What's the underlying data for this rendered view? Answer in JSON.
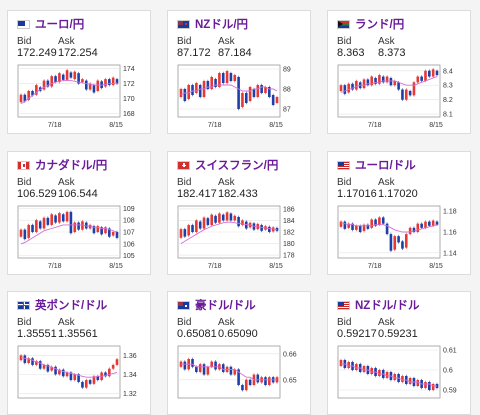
{
  "cards": [
    {
      "pair": "ユーロ/円",
      "flag": "eu",
      "bid": "172.249",
      "ask": "172.254",
      "yticks": [
        "174",
        "172",
        "170",
        "168"
      ],
      "yvals": [
        174,
        172,
        170,
        168
      ],
      "ymin": 167.5,
      "ymax": 174.5,
      "xticks": [
        "7/18",
        "8/15"
      ],
      "candles": [
        [
          169.5,
          170.5
        ],
        [
          170.5,
          169.6
        ],
        [
          169.8,
          171
        ],
        [
          171,
          170.4
        ],
        [
          170.5,
          171.8
        ],
        [
          171.5,
          171
        ],
        [
          171.2,
          172.4
        ],
        [
          172.4,
          171.6
        ],
        [
          171.6,
          173
        ],
        [
          173,
          172.2
        ],
        [
          172.2,
          173.4
        ],
        [
          173.2,
          172.5
        ],
        [
          172.5,
          173.8
        ],
        [
          173.5,
          172.8
        ],
        [
          172.6,
          173.6
        ],
        [
          173.4,
          172
        ],
        [
          172.2,
          172.6
        ],
        [
          172.4,
          171.2
        ],
        [
          171.2,
          172
        ],
        [
          171.8,
          170.8
        ],
        [
          171,
          172.4
        ],
        [
          172.3,
          171.4
        ],
        [
          171.6,
          172.6
        ],
        [
          172.6,
          171.8
        ],
        [
          171.8,
          172.8
        ],
        [
          172.6,
          172
        ]
      ],
      "ma": [
        169.3,
        169.6,
        170,
        170.4,
        170.8,
        171.2,
        171.5,
        171.8,
        172,
        172.2,
        172.3,
        172.4,
        172.4,
        172.4,
        172.3,
        172.2,
        172.1,
        172,
        171.9,
        171.8,
        171.8,
        171.8,
        171.9,
        172,
        172,
        172.1
      ]
    },
    {
      "pair": "NZドル/円",
      "flag": "nz",
      "bid": "87.172",
      "ask": "87.184",
      "yticks": [
        "89",
        "88",
        "87"
      ],
      "yvals": [
        89,
        88,
        87
      ],
      "ymin": 86.6,
      "ymax": 89.2,
      "xticks": [
        "7/18",
        "8/15"
      ],
      "candles": [
        [
          87.6,
          88
        ],
        [
          88,
          87.4
        ],
        [
          87.5,
          88.2
        ],
        [
          88.2,
          87.7
        ],
        [
          87.8,
          88.3
        ],
        [
          88.2,
          87.6
        ],
        [
          87.6,
          88.4
        ],
        [
          88.4,
          88
        ],
        [
          88,
          88.6
        ],
        [
          88.5,
          88.1
        ],
        [
          88.1,
          88.8
        ],
        [
          88.8,
          88.3
        ],
        [
          88.3,
          88.9
        ],
        [
          88.8,
          88.4
        ],
        [
          88.4,
          88.7
        ],
        [
          88.6,
          87
        ],
        [
          87.1,
          87.8
        ],
        [
          87.8,
          87.3
        ],
        [
          87.4,
          88.1
        ],
        [
          88,
          87.6
        ],
        [
          87.6,
          88.2
        ],
        [
          88.2,
          87.8
        ],
        [
          87.8,
          88.1
        ],
        [
          88.1,
          87.6
        ],
        [
          87.7,
          87.2
        ],
        [
          87.3,
          87.6
        ]
      ],
      "ma": [
        87.7,
        87.8,
        87.8,
        87.9,
        87.9,
        88,
        88,
        88.1,
        88.1,
        88.2,
        88.2,
        88.2,
        88.2,
        88.2,
        88.1,
        88,
        87.9,
        87.9,
        87.9,
        88,
        88,
        88.1,
        88.1,
        88,
        88,
        87.9
      ]
    },
    {
      "pair": "ランド/円",
      "flag": "za",
      "bid": "8.363",
      "ask": "8.373",
      "yticks": [
        "8.4",
        "8.3",
        "8.2",
        "8.1"
      ],
      "yvals": [
        8.4,
        8.3,
        8.2,
        8.1
      ],
      "ymin": 8.08,
      "ymax": 8.44,
      "xticks": [
        "7/18",
        "8/15"
      ],
      "candles": [
        [
          8.26,
          8.3
        ],
        [
          8.3,
          8.24
        ],
        [
          8.25,
          8.31
        ],
        [
          8.31,
          8.27
        ],
        [
          8.27,
          8.33
        ],
        [
          8.32,
          8.28
        ],
        [
          8.28,
          8.34
        ],
        [
          8.34,
          8.3
        ],
        [
          8.3,
          8.36
        ],
        [
          8.35,
          8.31
        ],
        [
          8.31,
          8.37
        ],
        [
          8.36,
          8.32
        ],
        [
          8.32,
          8.36
        ],
        [
          8.35,
          8.3
        ],
        [
          8.3,
          8.33
        ],
        [
          8.32,
          8.27
        ],
        [
          8.27,
          8.2
        ],
        [
          8.2,
          8.27
        ],
        [
          8.26,
          8.23
        ],
        [
          8.23,
          8.32
        ],
        [
          8.32,
          8.36
        ],
        [
          8.36,
          8.33
        ],
        [
          8.33,
          8.4
        ],
        [
          8.4,
          8.36
        ],
        [
          8.36,
          8.41
        ],
        [
          8.4,
          8.37
        ]
      ],
      "ma": [
        8.25,
        8.26,
        8.27,
        8.28,
        8.29,
        8.3,
        8.3,
        8.31,
        8.31,
        8.32,
        8.32,
        8.33,
        8.33,
        8.33,
        8.33,
        8.32,
        8.31,
        8.3,
        8.3,
        8.3,
        8.31,
        8.32,
        8.33,
        8.34,
        8.35,
        8.36
      ]
    },
    {
      "pair": "カナダドル/円",
      "flag": "ca",
      "bid": "106.529",
      "ask": "106.544",
      "yticks": [
        "109",
        "108",
        "107",
        "106",
        "105"
      ],
      "yvals": [
        109,
        108,
        107,
        106,
        105
      ],
      "ymin": 104.8,
      "ymax": 109.2,
      "xticks": [
        "7/18",
        "8/15"
      ],
      "candles": [
        [
          106.6,
          107.2
        ],
        [
          107.2,
          106.4
        ],
        [
          106.5,
          107.6
        ],
        [
          107.6,
          107
        ],
        [
          107,
          108
        ],
        [
          107.9,
          107.3
        ],
        [
          107.3,
          108.2
        ],
        [
          108.2,
          107.6
        ],
        [
          107.6,
          108.5
        ],
        [
          108.4,
          107.8
        ],
        [
          107.8,
          108.6
        ],
        [
          108.5,
          107.9
        ],
        [
          107.9,
          108.7
        ],
        [
          108.7,
          106.9
        ],
        [
          107,
          107.8
        ],
        [
          107.8,
          107.2
        ],
        [
          107.2,
          107.9
        ],
        [
          107.8,
          107.3
        ],
        [
          107.3,
          107.6
        ],
        [
          107.5,
          106.9
        ],
        [
          107,
          107.5
        ],
        [
          107.4,
          106.8
        ],
        [
          106.9,
          107.4
        ],
        [
          107.3,
          106.6
        ],
        [
          106.7,
          107
        ],
        [
          107,
          106.5
        ]
      ],
      "ma": [
        106,
        106.1,
        106.3,
        106.5,
        106.7,
        106.9,
        107.1,
        107.2,
        107.3,
        107.4,
        107.5,
        107.6,
        107.6,
        107.6,
        107.6,
        107.6,
        107.6,
        107.5,
        107.5,
        107.4,
        107.4,
        107.3,
        107.3,
        107.2,
        107.1,
        107
      ]
    },
    {
      "pair": "スイスフラン/円",
      "flag": "ch",
      "bid": "182.417",
      "ask": "182.433",
      "yticks": [
        "186",
        "184",
        "182",
        "180",
        "178"
      ],
      "yvals": [
        186,
        184,
        182,
        180,
        178
      ],
      "ymin": 177.5,
      "ymax": 186.5,
      "xticks": [
        "7/18",
        "8/15"
      ],
      "candles": [
        [
          181,
          182.5
        ],
        [
          182.5,
          181.2
        ],
        [
          181.4,
          183.2
        ],
        [
          183.2,
          182
        ],
        [
          182,
          184
        ],
        [
          183.8,
          182.6
        ],
        [
          182.6,
          184.5
        ],
        [
          184.4,
          183.2
        ],
        [
          183.2,
          185
        ],
        [
          184.8,
          183.6
        ],
        [
          183.6,
          185.2
        ],
        [
          185,
          184
        ],
        [
          184,
          185.4
        ],
        [
          185.2,
          184
        ],
        [
          184,
          184.8
        ],
        [
          184.6,
          183
        ],
        [
          183.2,
          184
        ],
        [
          183.8,
          182.6
        ],
        [
          182.8,
          183.6
        ],
        [
          183.5,
          182.4
        ],
        [
          182.5,
          183.4
        ],
        [
          183.2,
          182.2
        ],
        [
          182.4,
          183
        ],
        [
          182.9,
          182
        ],
        [
          182.1,
          182.8
        ],
        [
          182.7,
          182.2
        ]
      ],
      "ma": [
        180,
        180.4,
        180.8,
        181.2,
        181.6,
        182,
        182.4,
        182.7,
        183,
        183.2,
        183.4,
        183.6,
        183.7,
        183.7,
        183.6,
        183.5,
        183.4,
        183.3,
        183.2,
        183,
        182.9,
        182.8,
        182.7,
        182.6,
        182.5,
        182.4
      ]
    },
    {
      "pair": "ユーロ/ドル",
      "flag": "us",
      "bid": "1.17016",
      "ask": "1.17020",
      "yticks": [
        "1.18",
        "1.16",
        "1.14"
      ],
      "yvals": [
        1.18,
        1.16,
        1.14
      ],
      "ymin": 1.135,
      "ymax": 1.185,
      "xticks": [
        "7/18",
        "8/15"
      ],
      "candles": [
        [
          1.165,
          1.17
        ],
        [
          1.17,
          1.163
        ],
        [
          1.164,
          1.168
        ],
        [
          1.168,
          1.162
        ],
        [
          1.162,
          1.166
        ],
        [
          1.166,
          1.16
        ],
        [
          1.161,
          1.167
        ],
        [
          1.167,
          1.163
        ],
        [
          1.164,
          1.172
        ],
        [
          1.172,
          1.166
        ],
        [
          1.167,
          1.174
        ],
        [
          1.174,
          1.168
        ],
        [
          1.168,
          1.158
        ],
        [
          1.158,
          1.142
        ],
        [
          1.143,
          1.156
        ],
        [
          1.156,
          1.15
        ],
        [
          1.151,
          1.144
        ],
        [
          1.145,
          1.158
        ],
        [
          1.158,
          1.164
        ],
        [
          1.164,
          1.16
        ],
        [
          1.16,
          1.168
        ],
        [
          1.168,
          1.164
        ],
        [
          1.164,
          1.17
        ],
        [
          1.17,
          1.166
        ],
        [
          1.166,
          1.171
        ],
        [
          1.17,
          1.167
        ]
      ],
      "ma": [
        1.168,
        1.168,
        1.167,
        1.167,
        1.166,
        1.166,
        1.166,
        1.166,
        1.166,
        1.167,
        1.167,
        1.167,
        1.166,
        1.164,
        1.162,
        1.161,
        1.16,
        1.16,
        1.16,
        1.161,
        1.162,
        1.163,
        1.164,
        1.165,
        1.166,
        1.167
      ]
    },
    {
      "pair": "英ポンド/ドル",
      "flag": "gb",
      "bid": "1.35551",
      "ask": "1.35561",
      "yticks": [
        "1.36",
        "1.34",
        "1.32"
      ],
      "yvals": [
        1.36,
        1.34,
        1.32
      ],
      "ymin": 1.315,
      "ymax": 1.37,
      "xticks": [],
      "candles": [
        [
          1.355,
          1.36
        ],
        [
          1.36,
          1.352
        ],
        [
          1.352,
          1.357
        ],
        [
          1.357,
          1.35
        ],
        [
          1.35,
          1.354
        ],
        [
          1.354,
          1.346
        ],
        [
          1.346,
          1.35
        ],
        [
          1.35,
          1.343
        ],
        [
          1.344,
          1.348
        ],
        [
          1.348,
          1.34
        ],
        [
          1.34,
          1.345
        ],
        [
          1.345,
          1.338
        ],
        [
          1.338,
          1.342
        ],
        [
          1.342,
          1.334
        ],
        [
          1.334,
          1.34
        ],
        [
          1.34,
          1.332
        ],
        [
          1.332,
          1.326
        ],
        [
          1.326,
          1.334
        ],
        [
          1.334,
          1.33
        ],
        [
          1.33,
          1.338
        ],
        [
          1.338,
          1.334
        ],
        [
          1.334,
          1.342
        ],
        [
          1.342,
          1.338
        ],
        [
          1.338,
          1.346
        ],
        [
          1.346,
          1.35
        ],
        [
          1.35,
          1.356
        ]
      ],
      "ma": [
        1.358,
        1.357,
        1.356,
        1.355,
        1.353,
        1.352,
        1.35,
        1.349,
        1.347,
        1.346,
        1.344,
        1.343,
        1.342,
        1.341,
        1.34,
        1.339,
        1.338,
        1.337,
        1.337,
        1.337,
        1.338,
        1.338,
        1.339,
        1.34,
        1.341,
        1.342
      ]
    },
    {
      "pair": "豪ドル/ドル",
      "flag": "au",
      "bid": "0.65081",
      "ask": "0.65090",
      "yticks": [
        "0.66",
        "0.65"
      ],
      "yvals": [
        0.66,
        0.65
      ],
      "ymin": 0.643,
      "ymax": 0.663,
      "xticks": [],
      "candles": [
        [
          0.655,
          0.657
        ],
        [
          0.657,
          0.654
        ],
        [
          0.654,
          0.658
        ],
        [
          0.658,
          0.655
        ],
        [
          0.655,
          0.653
        ],
        [
          0.653,
          0.656
        ],
        [
          0.656,
          0.652
        ],
        [
          0.652,
          0.655
        ],
        [
          0.655,
          0.657
        ],
        [
          0.657,
          0.654
        ],
        [
          0.654,
          0.656
        ],
        [
          0.656,
          0.653
        ],
        [
          0.653,
          0.655
        ],
        [
          0.655,
          0.652
        ],
        [
          0.652,
          0.654
        ],
        [
          0.654,
          0.648
        ],
        [
          0.648,
          0.646
        ],
        [
          0.646,
          0.65
        ],
        [
          0.65,
          0.648
        ],
        [
          0.648,
          0.652
        ],
        [
          0.652,
          0.649
        ],
        [
          0.649,
          0.651
        ],
        [
          0.651,
          0.648
        ],
        [
          0.648,
          0.651
        ],
        [
          0.651,
          0.649
        ],
        [
          0.649,
          0.651
        ]
      ],
      "ma": [
        0.656,
        0.656,
        0.656,
        0.656,
        0.655,
        0.655,
        0.655,
        0.655,
        0.655,
        0.655,
        0.655,
        0.654,
        0.654,
        0.654,
        0.654,
        0.653,
        0.652,
        0.651,
        0.651,
        0.65,
        0.65,
        0.65,
        0.65,
        0.65,
        0.65,
        0.65
      ]
    },
    {
      "pair": "NZドル/ドル",
      "flag": "nzus",
      "bid": "0.59217",
      "ask": "0.59231",
      "yticks": [
        "0.61",
        "0.6",
        "0.59"
      ],
      "yvals": [
        0.61,
        0.6,
        0.59
      ],
      "ymin": 0.586,
      "ymax": 0.612,
      "xticks": [],
      "candles": [
        [
          0.602,
          0.605
        ],
        [
          0.605,
          0.601
        ],
        [
          0.601,
          0.604
        ],
        [
          0.604,
          0.6
        ],
        [
          0.6,
          0.603
        ],
        [
          0.603,
          0.599
        ],
        [
          0.599,
          0.602
        ],
        [
          0.602,
          0.598
        ],
        [
          0.598,
          0.601
        ],
        [
          0.601,
          0.597
        ],
        [
          0.597,
          0.6
        ],
        [
          0.6,
          0.596
        ],
        [
          0.596,
          0.599
        ],
        [
          0.599,
          0.595
        ],
        [
          0.595,
          0.598
        ],
        [
          0.598,
          0.594
        ],
        [
          0.594,
          0.597
        ],
        [
          0.597,
          0.593
        ],
        [
          0.593,
          0.596
        ],
        [
          0.596,
          0.592
        ],
        [
          0.592,
          0.595
        ],
        [
          0.595,
          0.591
        ],
        [
          0.591,
          0.594
        ],
        [
          0.594,
          0.59
        ],
        [
          0.59,
          0.593
        ],
        [
          0.593,
          0.591
        ]
      ],
      "ma": [
        0.603,
        0.603,
        0.602,
        0.602,
        0.601,
        0.601,
        0.6,
        0.6,
        0.599,
        0.599,
        0.598,
        0.598,
        0.597,
        0.597,
        0.596,
        0.596,
        0.595,
        0.595,
        0.594,
        0.594,
        0.594,
        0.593,
        0.593,
        0.593,
        0.592,
        0.592
      ]
    }
  ],
  "labels": {
    "bid": "Bid",
    "ask": "Ask"
  },
  "colors": {
    "up": "#e53935",
    "down": "#1e3fa8",
    "ma": "#d070d8",
    "title": "#6a1b9a"
  },
  "icons": {
    "us": "us-flag-icon",
    "eu": "eu-flag-icon",
    "nz": "nz-flag-icon",
    "za": "za-flag-icon",
    "ca": "ca-flag-icon",
    "ch": "ch-flag-icon",
    "gb": "gb-flag-icon",
    "au": "au-flag-icon",
    "nzus": "us-flag-icon"
  }
}
